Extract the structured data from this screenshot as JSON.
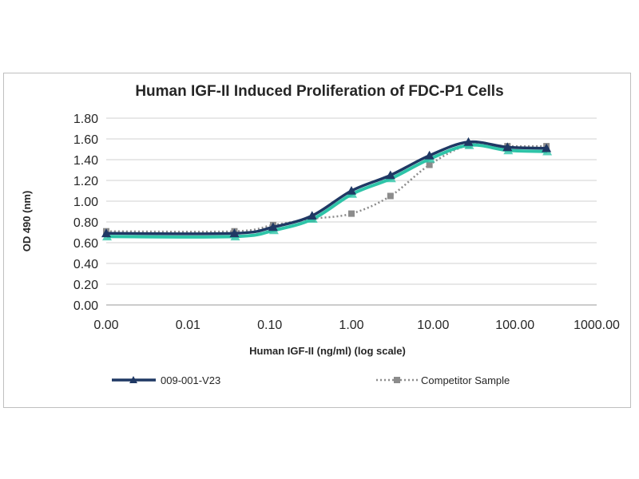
{
  "chart_data": {
    "type": "line",
    "title": "Human IGF-II Induced Proliferation of FDC-P1 Cells",
    "xlabel": "Human IGF-II (ng/ml) (log scale)",
    "ylabel": "OD 490 (nm)",
    "x_scale": "log",
    "x_ticks": [
      "0.00",
      "0.01",
      "0.10",
      "1.00",
      "10.00",
      "100.00",
      "1000.00"
    ],
    "y_ticks": [
      "0.00",
      "0.20",
      "0.40",
      "0.60",
      "0.80",
      "1.00",
      "1.20",
      "1.40",
      "1.60",
      "1.80"
    ],
    "ylim": [
      0,
      1.8
    ],
    "grid": "horizontal",
    "legend_position": "bottom",
    "series": [
      {
        "name": "009-001-V23",
        "color": "#1f3864",
        "marker": "triangle",
        "style": "solid",
        "x": [
          0.001,
          0.037,
          0.11,
          0.33,
          1.0,
          3.0,
          9.0,
          27.0,
          81.0,
          243.0
        ],
        "y": [
          0.69,
          0.69,
          0.75,
          0.86,
          1.1,
          1.25,
          1.44,
          1.57,
          1.52,
          1.51
        ]
      },
      {
        "name": "Competitor Sample",
        "color": "#8c8c8c",
        "marker": "square",
        "style": "dotted",
        "x": [
          0.001,
          0.037,
          0.11,
          0.33,
          1.0,
          3.0,
          9.0,
          27.0,
          81.0,
          243.0
        ],
        "y": [
          0.71,
          0.71,
          0.77,
          0.83,
          0.88,
          1.05,
          1.35,
          1.54,
          1.53,
          1.53
        ]
      }
    ],
    "shadow_color": "#2ec4a8"
  }
}
